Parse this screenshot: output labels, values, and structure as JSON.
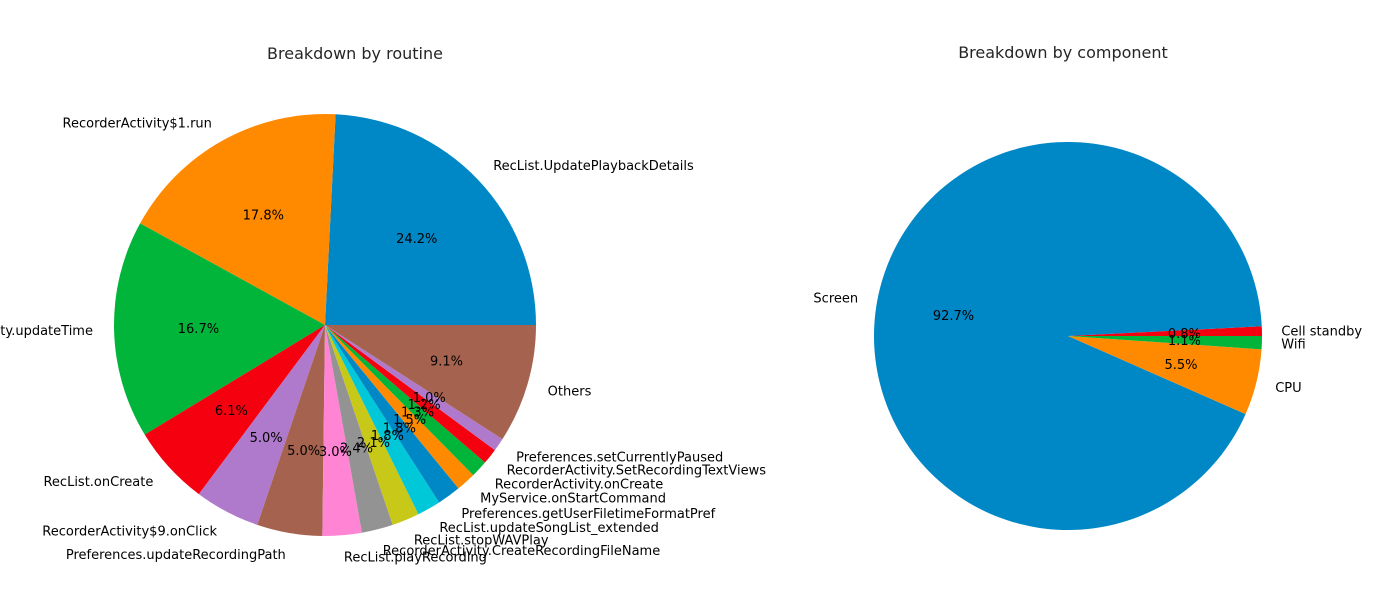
{
  "chart_data": [
    {
      "type": "pie",
      "title": "Breakdown by routine",
      "slices": [
        {
          "label": "RecList.UpdatePlaybackDetails",
          "value": 24.2,
          "pct_text": "24.2%",
          "color": "#0088c6"
        },
        {
          "label": "RecorderActivity$1.run",
          "value": 17.8,
          "pct_text": "17.8%",
          "color": "#ff8a00"
        },
        {
          "label": "RecorderActivity.updateTime",
          "value": 16.7,
          "pct_text": "16.7%",
          "color": "#00b53a"
        },
        {
          "label": "RecList.onCreate",
          "value": 6.1,
          "pct_text": "6.1%",
          "color": "#f5000e"
        },
        {
          "label": "RecorderActivity$9.onClick",
          "value": 5.0,
          "pct_text": "5.0%",
          "color": "#b07acc"
        },
        {
          "label": "Preferences.updateRecordingPath",
          "value": 5.0,
          "pct_text": "5.0%",
          "color": "#a5634f"
        },
        {
          "label": "RecList.playRecording",
          "value": 3.0,
          "pct_text": "3.0%",
          "color": "#ff85d4"
        },
        {
          "label": "RecorderActivity.CreateRecordingFileName",
          "value": 2.4,
          "pct_text": "2.4%",
          "color": "#939393"
        },
        {
          "label": "RecList.stopWAVPlay",
          "value": 2.1,
          "pct_text": "2.1%",
          "color": "#c8c818"
        },
        {
          "label": "RecList.updateSongList_extended",
          "value": 1.8,
          "pct_text": "1.8%",
          "color": "#00c8d8"
        },
        {
          "label": "Preferences.getUserFiletimeFormatPref",
          "value": 1.8,
          "pct_text": "1.8%",
          "color": "#0088c6"
        },
        {
          "label": "MyService.onStartCommand",
          "value": 1.5,
          "pct_text": "1.5%",
          "color": "#ff8a00"
        },
        {
          "label": "RecorderActivity.onCreate",
          "value": 1.3,
          "pct_text": "1.3%",
          "color": "#00b53a"
        },
        {
          "label": "RecorderActivity.SetRecordingTextViews",
          "value": 1.2,
          "pct_text": "1.2%",
          "color": "#f5000e"
        },
        {
          "label": "Preferences.setCurrentlyPaused",
          "value": 1.0,
          "pct_text": "1.0%",
          "color": "#b07acc"
        },
        {
          "label": "Others",
          "value": 9.1,
          "pct_text": "9.1%",
          "color": "#a5634f"
        }
      ]
    },
    {
      "type": "pie",
      "title": "Breakdown by component",
      "slices": [
        {
          "label": "Cell standby",
          "value": 0.8,
          "pct_text": "0.8%",
          "color": "#f5000e"
        },
        {
          "label": "Screen",
          "value": 92.7,
          "pct_text": "92.7%",
          "color": "#0088c6"
        },
        {
          "label": "CPU",
          "value": 5.5,
          "pct_text": "5.5%",
          "color": "#ff8a00"
        },
        {
          "label": "Wifi",
          "value": 1.1,
          "pct_text": "1.1%",
          "color": "#00b53a"
        }
      ]
    }
  ]
}
